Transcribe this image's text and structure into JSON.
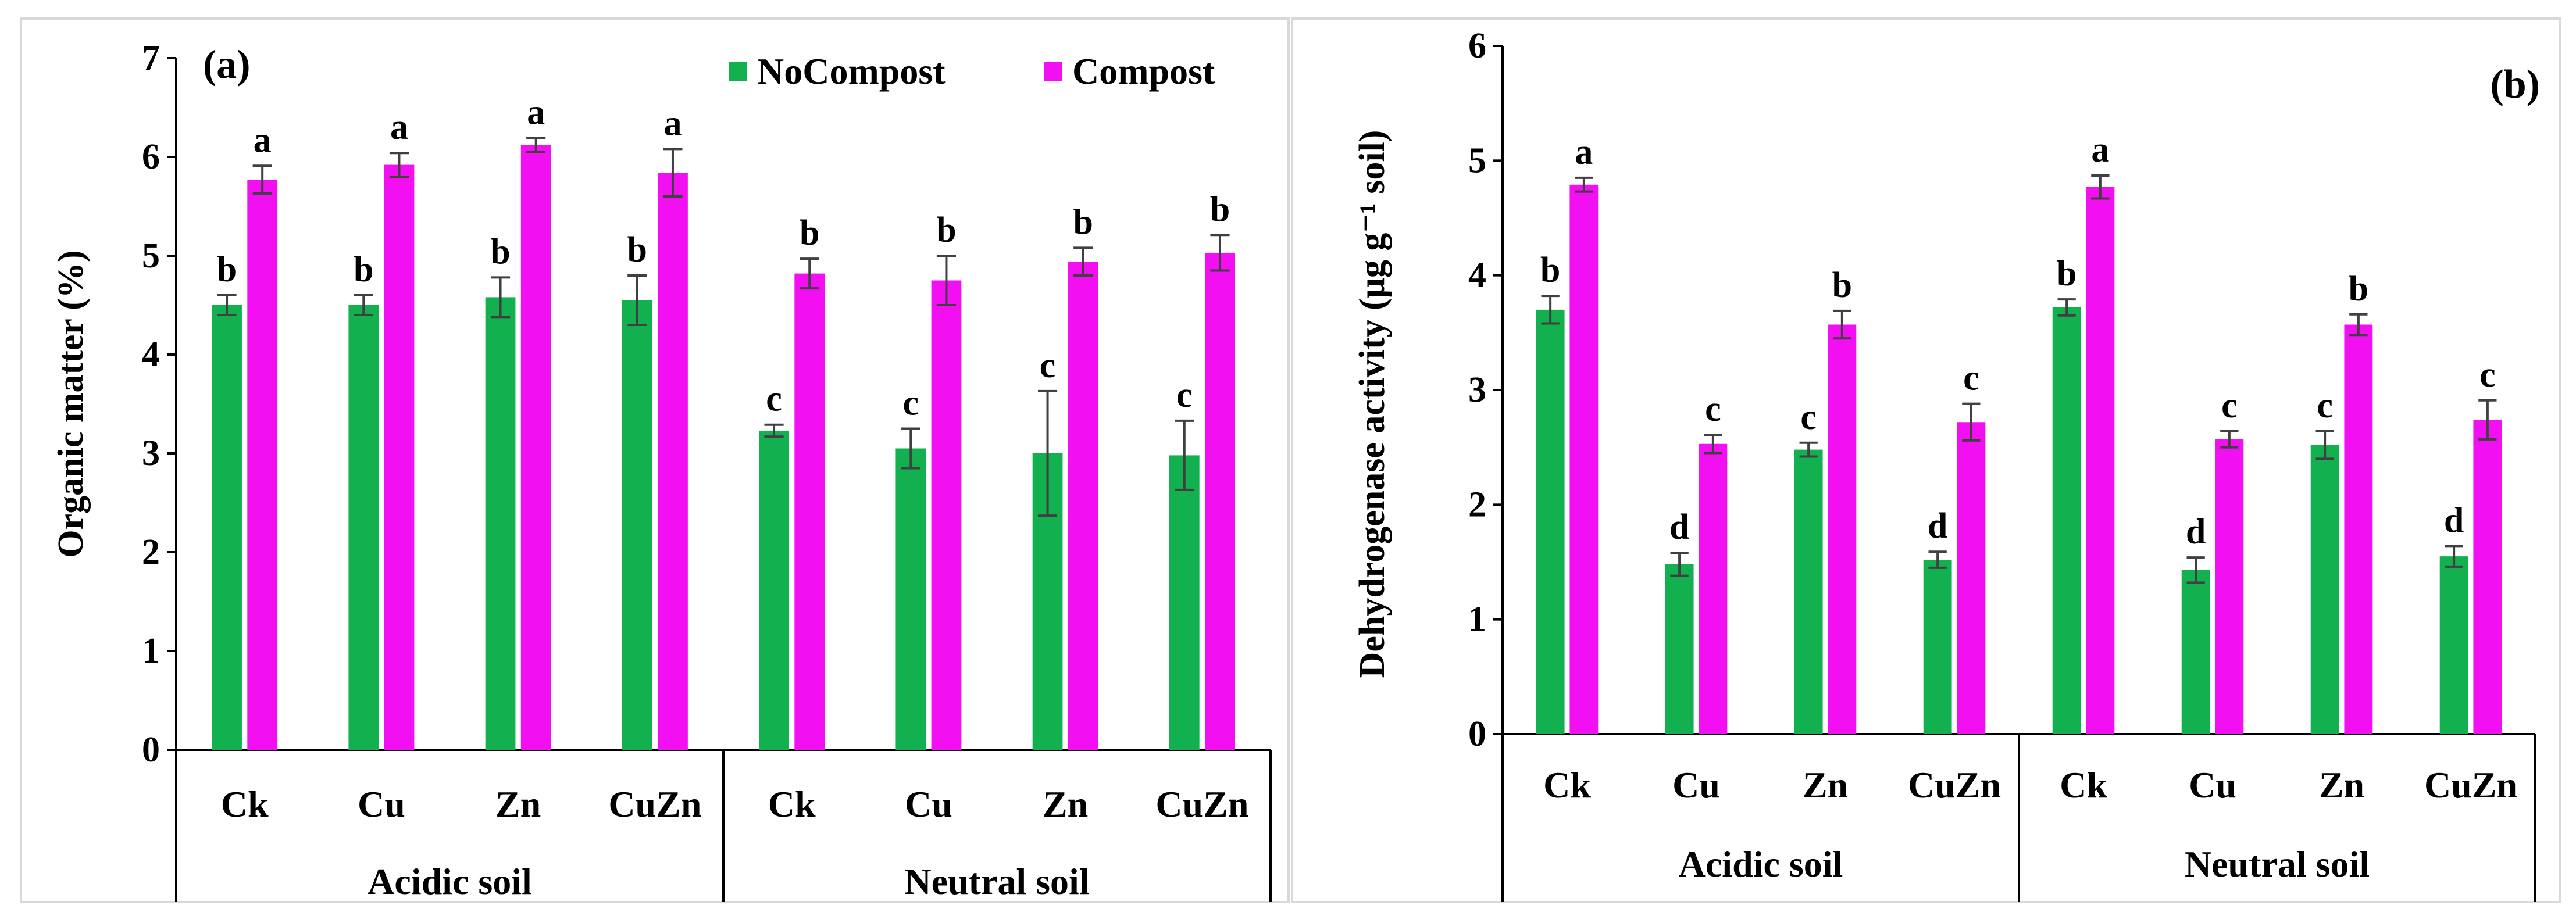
{
  "colors": {
    "nocompost": "#12B04F",
    "compost": "#F20FF2",
    "axis": "#000000",
    "error": "#404040",
    "frame": "#D9D9D9"
  },
  "legend": {
    "nocompost": "NoCompost",
    "compost": "Compost"
  },
  "chart_data": [
    {
      "type": "bar",
      "panel_label": "(a)",
      "ylabel": "Organic matter (%)",
      "ylim": [
        0,
        7
      ],
      "yticks": [
        "0",
        "1",
        "2",
        "3",
        "4",
        "5",
        "6",
        "7"
      ],
      "categories": [
        "Ck",
        "Cu",
        "Zn",
        "CuZn",
        "Ck",
        "Cu",
        "Zn",
        "CuZn"
      ],
      "groups": [
        {
          "label": "Acidic soil",
          "count": 4
        },
        {
          "label": "Neutral soil",
          "count": 4
        }
      ],
      "series": [
        {
          "name": "NoCompost",
          "values": [
            4.5,
            4.5,
            4.58,
            4.55,
            3.23,
            3.05,
            3.0,
            2.98
          ],
          "errors": [
            0.1,
            0.1,
            0.2,
            0.25,
            0.06,
            0.2,
            0.63,
            0.35
          ],
          "letters": [
            "b",
            "b",
            "b",
            "b",
            "c",
            "c",
            "c",
            "c"
          ]
        },
        {
          "name": "Compost",
          "values": [
            5.77,
            5.92,
            6.12,
            5.84,
            4.82,
            4.75,
            4.94,
            5.03
          ],
          "errors": [
            0.14,
            0.12,
            0.07,
            0.24,
            0.15,
            0.25,
            0.14,
            0.18
          ],
          "letters": [
            "a",
            "a",
            "a",
            "a",
            "b",
            "b",
            "b",
            "b"
          ]
        }
      ]
    },
    {
      "type": "bar",
      "panel_label": "(b)",
      "ylabel": "Dehydrogenase activity (μg g⁻¹ soil)",
      "ylim": [
        0,
        6
      ],
      "yticks": [
        "0",
        "1",
        "2",
        "3",
        "4",
        "5",
        "6"
      ],
      "categories": [
        "Ck",
        "Cu",
        "Zn",
        "CuZn",
        "Ck",
        "Cu",
        "Zn",
        "CuZn"
      ],
      "groups": [
        {
          "label": "Acidic soil",
          "count": 4
        },
        {
          "label": "Neutral soil",
          "count": 4
        }
      ],
      "series": [
        {
          "name": "NoCompost",
          "values": [
            3.7,
            1.48,
            2.48,
            1.52,
            3.72,
            1.43,
            2.52,
            1.55
          ],
          "errors": [
            0.12,
            0.1,
            0.06,
            0.07,
            0.07,
            0.11,
            0.12,
            0.09
          ],
          "letters": [
            "b",
            "d",
            "c",
            "d",
            "b",
            "d",
            "c",
            "d"
          ]
        },
        {
          "name": "Compost",
          "values": [
            4.79,
            2.53,
            3.57,
            2.72,
            4.77,
            2.57,
            3.57,
            2.74
          ],
          "errors": [
            0.06,
            0.08,
            0.12,
            0.16,
            0.1,
            0.07,
            0.09,
            0.17
          ],
          "letters": [
            "a",
            "c",
            "b",
            "c",
            "a",
            "c",
            "b",
            "c"
          ]
        }
      ]
    }
  ]
}
